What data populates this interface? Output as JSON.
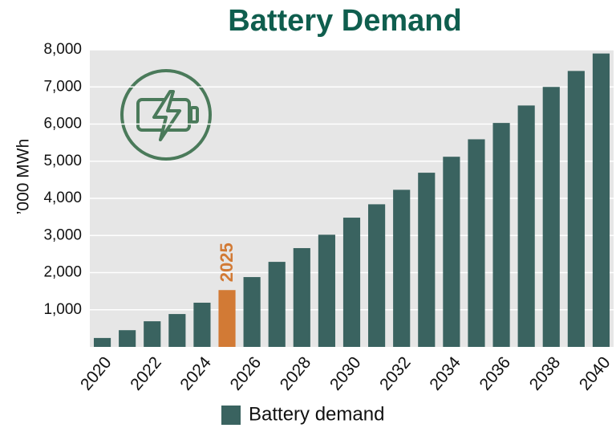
{
  "chart_data": {
    "type": "bar",
    "title": "Battery Demand",
    "y_label": "’000 MWh",
    "categories": [
      "2020",
      null,
      "2022",
      null,
      "2024",
      null,
      "2026",
      null,
      "2028",
      null,
      "2030",
      null,
      "2032",
      null,
      "2034",
      null,
      "2036",
      null,
      "2038",
      null,
      "2040"
    ],
    "series": [
      {
        "name": "Battery demand",
        "color": "#3a6360",
        "values": [
          240,
          450,
          690,
          885,
          1190,
          1530,
          1880,
          2290,
          2660,
          3020,
          3480,
          3840,
          4230,
          4690,
          5120,
          5590,
          6030,
          6500,
          7000,
          7430,
          7900
        ]
      }
    ],
    "colors": [
      "#3a6360",
      "#3a6360",
      "#3a6360",
      "#3a6360",
      "#3a6360",
      "#d27a35",
      "#3a6360",
      "#3a6360",
      "#3a6360",
      "#3a6360",
      "#3a6360",
      "#3a6360",
      "#3a6360",
      "#3a6360",
      "#3a6360",
      "#3a6360",
      "#3a6360",
      "#3a6360",
      "#3a6360",
      "#3a6360",
      "#3a6360"
    ],
    "annotation": "2025",
    "ylim": [
      0,
      8000
    ],
    "yticks": [
      {
        "value": 1000,
        "label": "1,000"
      },
      {
        "value": 2000,
        "label": "2,000"
      },
      {
        "value": 3000,
        "label": "3,000"
      },
      {
        "value": 4000,
        "label": "4,000"
      },
      {
        "value": 5000,
        "label": "5,000"
      },
      {
        "value": 6000,
        "label": "6,000"
      },
      {
        "value": 7000,
        "label": "7,000"
      },
      {
        "value": 8000,
        "label": "8,000"
      }
    ],
    "grid": true
  }
}
